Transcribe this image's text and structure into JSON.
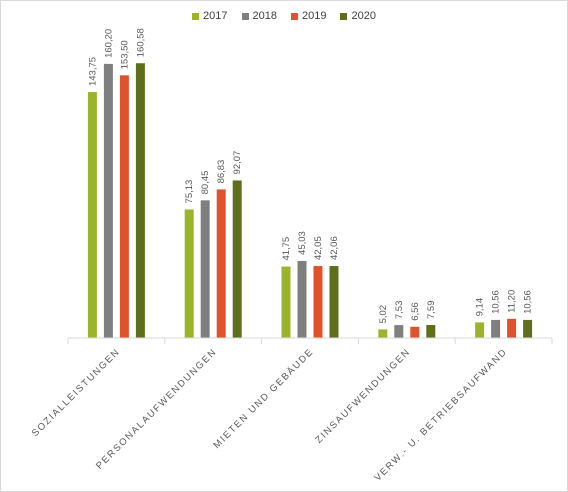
{
  "chart_data": {
    "type": "bar",
    "categories": [
      "SOZIALLEISTUNGEN",
      "PERSONALAUFWENDUNGEN",
      "MIETEN UND GEBÄUDE",
      "ZINSAUFWENDUNGEN",
      "VERW.- U. BETRIEBSAUFWAND"
    ],
    "series": [
      {
        "name": "2017",
        "color": "#9bb52b",
        "values": [
          143.75,
          75.13,
          41.75,
          5.02,
          9.14
        ],
        "labels": [
          "143,75",
          "75,13",
          "41,75",
          "5,02",
          "9,14"
        ]
      },
      {
        "name": "2018",
        "color": "#7f7f7f",
        "values": [
          160.2,
          80.45,
          45.03,
          7.53,
          10.56
        ],
        "labels": [
          "160,20",
          "80,45",
          "45,03",
          "7,53",
          "10,56"
        ]
      },
      {
        "name": "2019",
        "color": "#e0522b",
        "values": [
          153.5,
          86.83,
          42.05,
          6.56,
          11.2
        ],
        "labels": [
          "153,50",
          "86,83",
          "42,05",
          "6,56",
          "11,20"
        ]
      },
      {
        "name": "2020",
        "color": "#5f6e1a",
        "values": [
          160.58,
          92.07,
          42.06,
          7.59,
          10.56
        ],
        "labels": [
          "160,58",
          "92,07",
          "42,06",
          "7,59",
          "10,56"
        ]
      }
    ],
    "title": "",
    "xlabel": "",
    "ylabel": "",
    "ylim": [
      0,
      180
    ],
    "grid": false,
    "legend_position": "top"
  }
}
